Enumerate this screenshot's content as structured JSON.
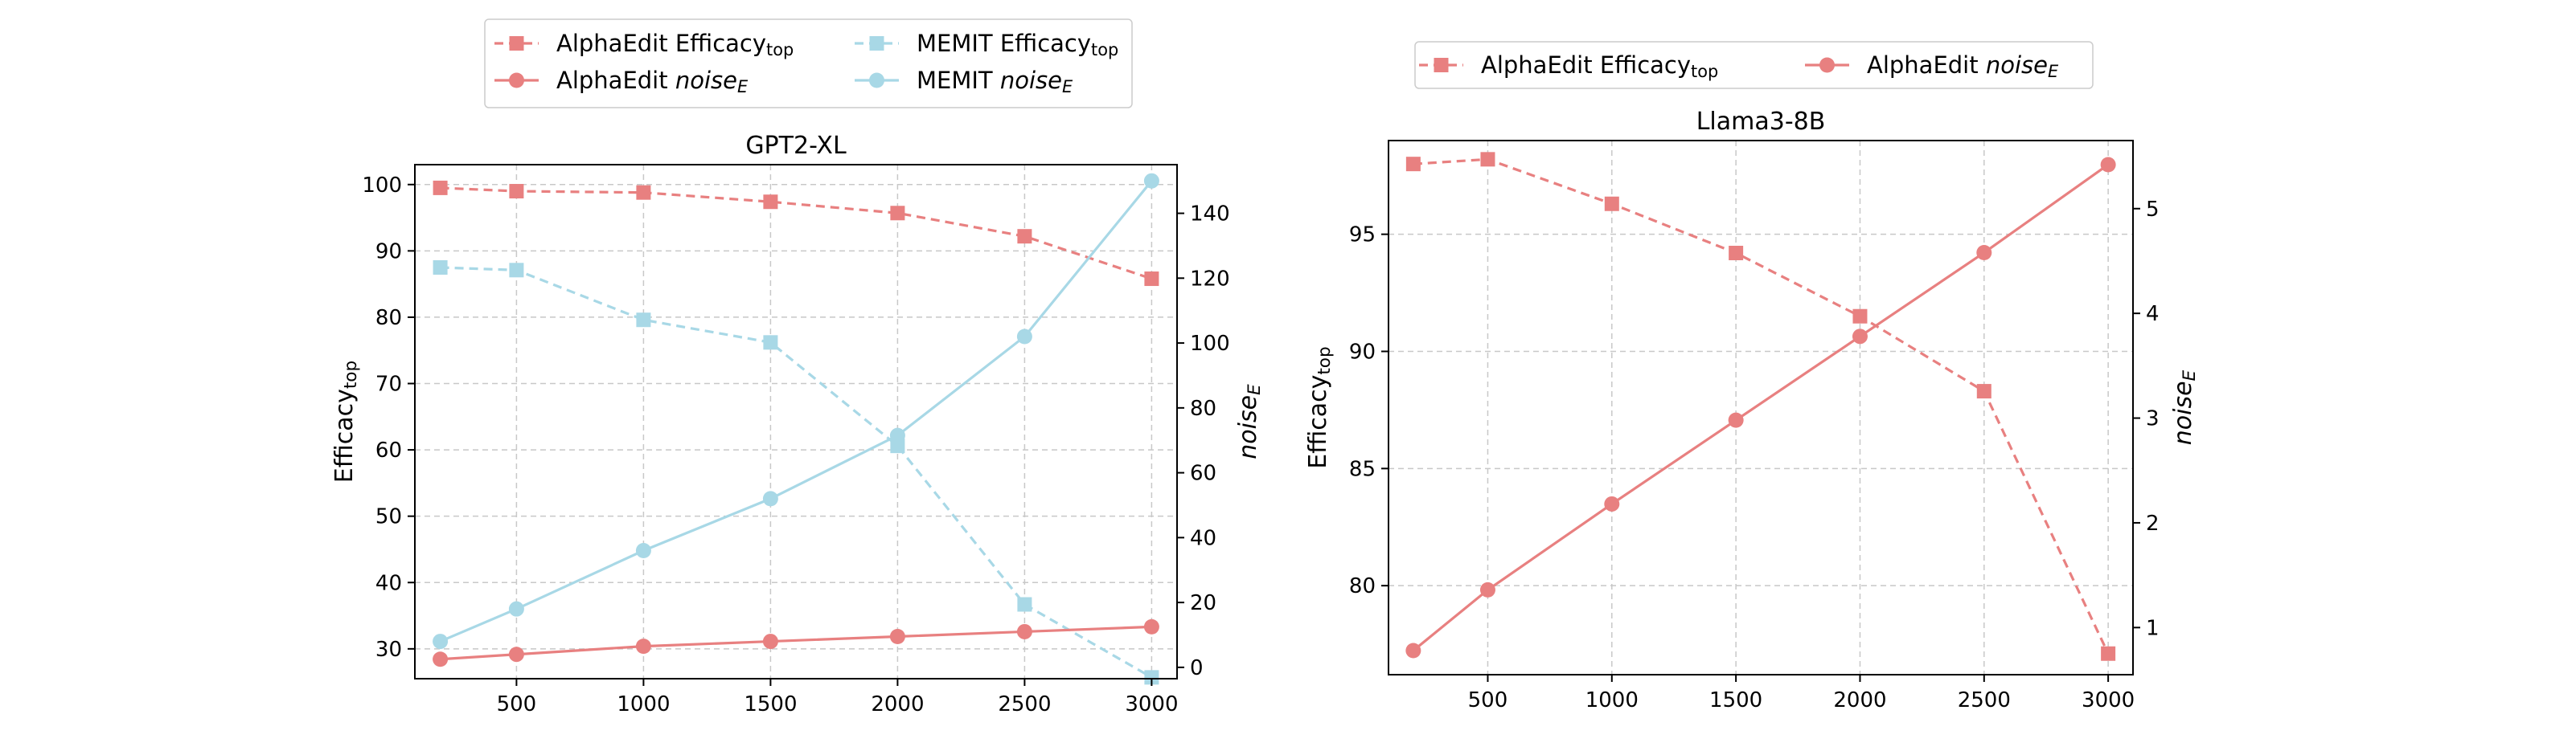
{
  "colors": {
    "alphaedit": "#e88080",
    "memit": "#a8d8e6"
  },
  "chart_data": [
    {
      "type": "line",
      "title": "GPT2-XL",
      "xlabel": "",
      "ylabel": "Efficacy_top",
      "y2label": "noise_E",
      "x": [
        200,
        500,
        1000,
        1500,
        2000,
        2500,
        3000
      ],
      "xticks": [
        500,
        1000,
        1500,
        2000,
        2500,
        3000
      ],
      "xlim": [
        100,
        3100
      ],
      "ylim": [
        25.5,
        103
      ],
      "yticks": [
        30,
        40,
        50,
        60,
        70,
        80,
        90,
        100
      ],
      "y2lim": [
        -3.5,
        155
      ],
      "y2ticks": [
        0,
        20,
        40,
        60,
        80,
        100,
        120,
        140
      ],
      "grid": true,
      "legend_position": "above",
      "legend_columns": 2,
      "series": [
        {
          "name": "AlphaEdit Efficacy_top",
          "axis": "left",
          "style": "dashed",
          "marker": "square",
          "color": "#e88080",
          "values": [
            99.5,
            99.0,
            98.8,
            97.4,
            95.7,
            92.2,
            85.8
          ]
        },
        {
          "name": "MEMIT Efficacy_top",
          "axis": "left",
          "style": "dashed",
          "marker": "square",
          "color": "#a8d8e6",
          "values": [
            87.5,
            87.1,
            79.6,
            76.2,
            60.6,
            36.7,
            25.7
          ]
        },
        {
          "name": "AlphaEdit noise_E",
          "axis": "right",
          "style": "solid",
          "marker": "circle",
          "color": "#e88080",
          "values": [
            2.5,
            4.0,
            6.5,
            8.0,
            9.5,
            11.0,
            12.5
          ]
        },
        {
          "name": "MEMIT noise_E",
          "axis": "right",
          "style": "solid",
          "marker": "circle",
          "color": "#a8d8e6",
          "values": [
            8.0,
            18.0,
            36.0,
            52.0,
            71.5,
            102.0,
            150.0
          ]
        }
      ],
      "legend_order": [
        0,
        2,
        1,
        3
      ]
    },
    {
      "type": "line",
      "title": "Llama3-8B",
      "xlabel": "",
      "ylabel": "Efficacy_top",
      "y2label": "noise_E",
      "x": [
        200,
        500,
        1000,
        1500,
        2000,
        2500,
        3000
      ],
      "xticks": [
        500,
        1000,
        1500,
        2000,
        2500,
        3000
      ],
      "xlim": [
        100,
        3100
      ],
      "ylim": [
        76.2,
        99.0
      ],
      "yticks": [
        80,
        85,
        90,
        95
      ],
      "y2lim": [
        0.55,
        5.65
      ],
      "y2ticks": [
        1,
        2,
        3,
        4,
        5
      ],
      "grid": true,
      "legend_position": "above",
      "legend_columns": 2,
      "series": [
        {
          "name": "AlphaEdit Efficacy_top",
          "axis": "left",
          "style": "dashed",
          "marker": "square",
          "color": "#e88080",
          "values": [
            98.0,
            98.2,
            96.3,
            94.2,
            91.5,
            88.3,
            77.1
          ]
        },
        {
          "name": "AlphaEdit noise_E",
          "axis": "right",
          "style": "solid",
          "marker": "circle",
          "color": "#e88080",
          "values": [
            0.78,
            1.36,
            2.18,
            2.98,
            3.78,
            4.58,
            5.42
          ]
        }
      ],
      "legend_order": [
        0,
        1
      ]
    }
  ]
}
